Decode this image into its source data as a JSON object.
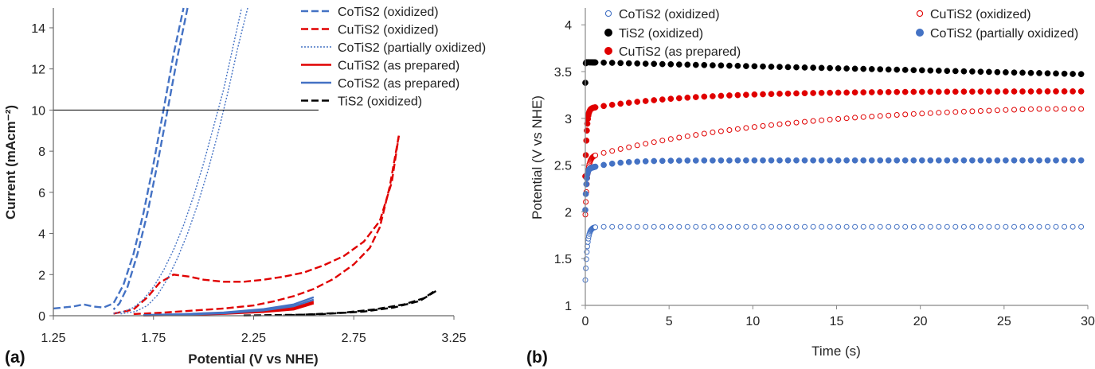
{
  "chart_data": [
    {
      "type": "line",
      "panel_label": "(a)",
      "xlabel": "Potential (V vs NHE)",
      "ylabel": "Current (mAcm⁻²)",
      "xlim": [
        1.25,
        3.25
      ],
      "ylim": [
        0,
        15
      ],
      "xticks": [
        "1.25",
        "1.75",
        "2.25",
        "2.75",
        "3.25"
      ],
      "yticks": [
        "0",
        "2",
        "4",
        "6",
        "8",
        "10",
        "12",
        "14"
      ],
      "reference_line_y": 10,
      "legend": [
        "CoTiS2 (oxidized)",
        "CuTiS2 (oxidized)",
        "CoTiS2 (partially oxidized)",
        "CuTiS2 (as prepared)",
        "CoTiS2 (as prepared)",
        "TiS2 (oxidized)"
      ],
      "series": [
        {
          "name": "CoTiS2 (oxidized)",
          "color": "#4472c4",
          "dash": "dashed",
          "forward": [
            [
              1.25,
              0.35
            ],
            [
              1.35,
              0.45
            ],
            [
              1.4,
              0.55
            ],
            [
              1.45,
              0.45
            ],
            [
              1.5,
              0.4
            ],
            [
              1.55,
              0.6
            ],
            [
              1.6,
              1.5
            ],
            [
              1.65,
              3.0
            ],
            [
              1.7,
              5.0
            ],
            [
              1.75,
              7.4
            ],
            [
              1.8,
              10.0
            ],
            [
              1.85,
              12.7
            ],
            [
              1.9,
              15.2
            ]
          ],
          "reverse": [
            [
              1.92,
              15.2
            ],
            [
              1.87,
              12.6
            ],
            [
              1.82,
              10.0
            ],
            [
              1.77,
              7.4
            ],
            [
              1.72,
              5.0
            ],
            [
              1.67,
              3.0
            ],
            [
              1.62,
              1.4
            ],
            [
              1.58,
              0.6
            ],
            [
              1.55,
              0.3
            ]
          ]
        },
        {
          "name": "CuTiS2 (oxidized)",
          "color": "#e00000",
          "dash": "dashed",
          "forward": [
            [
              1.55,
              0.1
            ],
            [
              1.65,
              0.3
            ],
            [
              1.72,
              0.9
            ],
            [
              1.78,
              1.6
            ],
            [
              1.85,
              2.0
            ],
            [
              1.93,
              1.9
            ],
            [
              2.0,
              1.75
            ],
            [
              2.1,
              1.65
            ],
            [
              2.2,
              1.65
            ],
            [
              2.3,
              1.75
            ],
            [
              2.4,
              1.9
            ],
            [
              2.5,
              2.1
            ],
            [
              2.6,
              2.45
            ],
            [
              2.7,
              2.9
            ],
            [
              2.8,
              3.6
            ],
            [
              2.88,
              4.6
            ],
            [
              2.94,
              6.5
            ],
            [
              2.975,
              8.75
            ]
          ],
          "reverse": [
            [
              2.975,
              8.75
            ],
            [
              2.93,
              6.3
            ],
            [
              2.88,
              4.3
            ],
            [
              2.83,
              3.3
            ],
            [
              2.75,
              2.5
            ],
            [
              2.65,
              1.8
            ],
            [
              2.55,
              1.3
            ],
            [
              2.45,
              0.95
            ],
            [
              2.35,
              0.7
            ],
            [
              2.25,
              0.5
            ],
            [
              2.1,
              0.35
            ],
            [
              1.95,
              0.25
            ],
            [
              1.8,
              0.15
            ],
            [
              1.65,
              0.08
            ]
          ]
        },
        {
          "name": "CoTiS2 (partially oxidized)",
          "color": "#4472c4",
          "dash": "dotted",
          "forward": [
            [
              1.55,
              0.1
            ],
            [
              1.6,
              0.2
            ],
            [
              1.65,
              0.4
            ],
            [
              1.7,
              0.8
            ],
            [
              1.75,
              1.4
            ],
            [
              1.8,
              2.2
            ],
            [
              1.85,
              3.2
            ],
            [
              1.9,
              4.4
            ],
            [
              1.95,
              5.8
            ],
            [
              2.0,
              7.4
            ],
            [
              2.05,
              9.2
            ],
            [
              2.1,
              11.0
            ],
            [
              2.15,
              13.2
            ],
            [
              2.19,
              15.2
            ]
          ],
          "reverse": [
            [
              2.22,
              15.2
            ],
            [
              2.17,
              13.0
            ],
            [
              2.12,
              10.8
            ],
            [
              2.07,
              8.8
            ],
            [
              2.02,
              7.0
            ],
            [
              1.97,
              5.4
            ],
            [
              1.92,
              4.0
            ],
            [
              1.87,
              2.8
            ],
            [
              1.82,
              1.8
            ],
            [
              1.77,
              1.0
            ],
            [
              1.72,
              0.5
            ],
            [
              1.66,
              0.2
            ],
            [
              1.58,
              0.08
            ]
          ]
        },
        {
          "name": "CuTiS2 (as prepared)",
          "color": "#e00000",
          "dash": "solid",
          "forward": [
            [
              1.7,
              0.02
            ],
            [
              1.9,
              0.06
            ],
            [
              2.1,
              0.12
            ],
            [
              2.3,
              0.22
            ],
            [
              2.45,
              0.38
            ],
            [
              2.55,
              0.68
            ]
          ],
          "reverse": [
            [
              2.55,
              0.6
            ],
            [
              2.45,
              0.3
            ],
            [
              2.3,
              0.18
            ],
            [
              2.1,
              0.09
            ],
            [
              1.9,
              0.04
            ],
            [
              1.7,
              0.01
            ]
          ]
        },
        {
          "name": "CoTiS2 (as prepared)",
          "color": "#4472c4",
          "dash": "solid",
          "forward": [
            [
              1.7,
              0.03
            ],
            [
              1.9,
              0.08
            ],
            [
              2.1,
              0.16
            ],
            [
              2.3,
              0.32
            ],
            [
              2.45,
              0.55
            ],
            [
              2.55,
              0.9
            ]
          ],
          "reverse": [
            [
              2.55,
              0.78
            ],
            [
              2.45,
              0.46
            ],
            [
              2.3,
              0.26
            ],
            [
              2.1,
              0.12
            ],
            [
              1.9,
              0.05
            ],
            [
              1.7,
              0.02
            ]
          ]
        },
        {
          "name": "TiS2 (oxidized)",
          "color": "#000000",
          "dash": "dashed",
          "forward": [
            [
              2.2,
              0.01
            ],
            [
              2.5,
              0.05
            ],
            [
              2.7,
              0.15
            ],
            [
              2.85,
              0.3
            ],
            [
              3.0,
              0.55
            ],
            [
              3.1,
              0.85
            ],
            [
              3.16,
              1.25
            ]
          ],
          "reverse": [
            [
              3.16,
              1.2
            ],
            [
              3.08,
              0.72
            ],
            [
              2.95,
              0.4
            ],
            [
              2.8,
              0.2
            ],
            [
              2.6,
              0.08
            ],
            [
              2.4,
              0.02
            ]
          ]
        }
      ]
    },
    {
      "type": "scatter",
      "panel_label": "(b)",
      "xlabel": "Time (s)",
      "ylabel": "Potential (V vs NHE)",
      "xlim": [
        0,
        30
      ],
      "ylim": [
        1,
        4.2
      ],
      "xticks": [
        "0",
        "5",
        "10",
        "15",
        "20",
        "25",
        "30"
      ],
      "yticks": [
        "1",
        "1.5",
        "2",
        "2.5",
        "3",
        "3.5",
        "4"
      ],
      "legend": [
        "CoTiS2 (oxidized)",
        "TiS2 (oxidized)",
        "CuTiS2 (as prepared)",
        "CuTiS2 (oxidized)",
        "CoTiS2 (partially oxidized)"
      ],
      "series": [
        {
          "name": "CoTiS2 (oxidized)",
          "color": "#4472c4",
          "filled": false,
          "model": {
            "v0": 1.27,
            "vplat": 1.84,
            "tau": 0.12,
            "slope": 0
          }
        },
        {
          "name": "TiS2 (oxidized)",
          "color": "#000000",
          "filled": true,
          "model": {
            "v0": 3.38,
            "vplat": 3.6,
            "tau": 0.01,
            "slope": -0.0043
          }
        },
        {
          "name": "CuTiS2 (as prepared)",
          "color": "#e00000",
          "filled": true,
          "model": {
            "v0": 2.38,
            "vplat": 3.1,
            "tau": 0.08,
            "slope": 0.0,
            "rise_to": 3.29,
            "rise_tau": 6.0
          }
        },
        {
          "name": "CuTiS2 (oxidized)",
          "color": "#e00000",
          "filled": false,
          "model": {
            "v0": 1.97,
            "vplat": 2.58,
            "tau": 0.12,
            "slope": 0.0,
            "rise_to": 3.1,
            "rise_tau": 18.0,
            "rise_linear": true
          }
        },
        {
          "name": "CoTiS2 (partially oxidized)",
          "color": "#4472c4",
          "filled": true,
          "model": {
            "v0": 2.02,
            "vplat": 2.45,
            "tau": 0.06,
            "slope": 0.0,
            "rise_to": 2.55,
            "rise_tau": 1.5
          }
        }
      ]
    }
  ]
}
